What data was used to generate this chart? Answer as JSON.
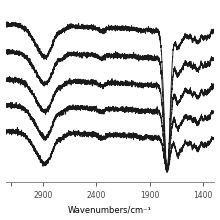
{
  "xlabel": "Wavenumbers/cm⁻¹",
  "background_color": "#ffffff",
  "line_color": "#1a1a1a",
  "n_lines": 5,
  "offsets": [
    0.92,
    0.73,
    0.54,
    0.36,
    0.18
  ],
  "noise_scale": 0.008,
  "xmin": 3250,
  "xmax": 1300,
  "x_ticks": [
    3200,
    2900,
    2400,
    1900,
    1400
  ],
  "x_tick_labels": [
    "",
    "2900",
    "2400",
    "1900",
    "1400"
  ]
}
